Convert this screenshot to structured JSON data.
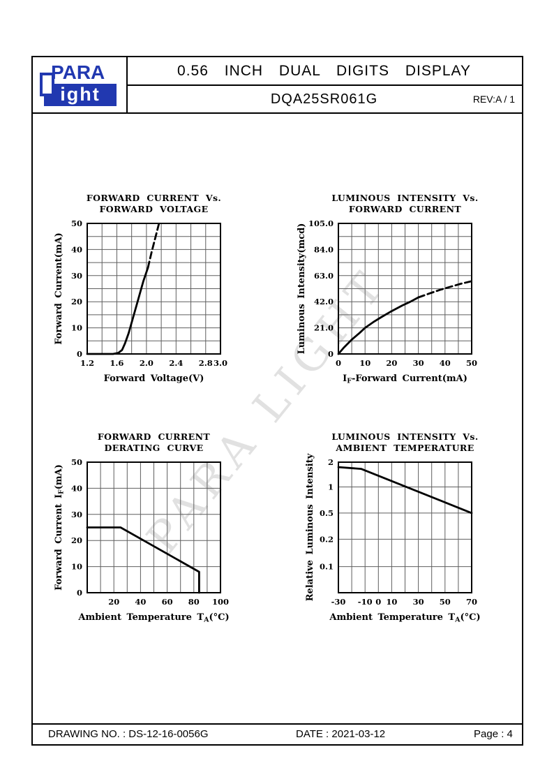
{
  "header": {
    "logo_top": "PARA",
    "logo_bottom": "ight",
    "title": "0.56 INCH DUAL DIGITS DISPLAY",
    "part_number": "DQA25SR061G",
    "rev": "REV:A / 1"
  },
  "watermark": "PARA LIGHT",
  "footer": {
    "drawing_no": "DRAWING NO. : DS-12-16-0056G",
    "date": "DATE : 2021-03-12",
    "page": "Page : 4"
  },
  "colors": {
    "brand_blue": "#2138b0",
    "grid": "#5e5e5e",
    "curve": "#000000",
    "watermark": "#c9c9c9"
  },
  "chart_data": [
    {
      "type": "line",
      "title_lines": [
        "FORWARD CURRENT Vs.",
        "FORWARD VOLTAGE"
      ],
      "xlabel": "Forward Voltage(V)",
      "ylabel": "Forward Current(mA)",
      "x_axis": {
        "min": 1.2,
        "max": 3.0,
        "grid": [
          1.2,
          1.4,
          1.6,
          1.8,
          2.0,
          2.2,
          2.4,
          2.6,
          2.8,
          3.0
        ],
        "ticks": [
          {
            "v": 1.2,
            "label": "1.2"
          },
          {
            "v": 1.6,
            "label": "1.6"
          },
          {
            "v": 2.0,
            "label": "2.0"
          },
          {
            "v": 2.4,
            "label": "2.4"
          },
          {
            "v": 2.8,
            "label": "2.8"
          },
          {
            "v": 3.0,
            "label": "3.0"
          }
        ]
      },
      "y_axis": {
        "min": 0,
        "max": 50,
        "grid": [
          0,
          5,
          10,
          15,
          20,
          25,
          30,
          35,
          40,
          45,
          50
        ],
        "ticks": [
          {
            "v": 0,
            "label": "0"
          },
          {
            "v": 10,
            "label": "10"
          },
          {
            "v": 20,
            "label": "20"
          },
          {
            "v": 30,
            "label": "30"
          },
          {
            "v": 40,
            "label": "40"
          },
          {
            "v": 50,
            "label": "50"
          }
        ]
      },
      "series": [
        {
          "style": "solid",
          "points": [
            [
              1.2,
              0
            ],
            [
              1.55,
              0
            ],
            [
              1.62,
              0.4
            ],
            [
              1.67,
              1.5
            ],
            [
              1.71,
              4
            ],
            [
              1.76,
              8
            ],
            [
              1.82,
              14
            ],
            [
              1.89,
              21
            ],
            [
              1.96,
              28
            ],
            [
              2.02,
              33
            ]
          ]
        },
        {
          "style": "dashed",
          "points": [
            [
              2.02,
              33
            ],
            [
              2.07,
              39
            ],
            [
              2.12,
              44.5
            ],
            [
              2.17,
              50
            ]
          ]
        }
      ]
    },
    {
      "type": "line",
      "title_lines": [
        "LUMINOUS INTENSITY Vs.",
        "FORWARD CURRENT"
      ],
      "xlabel": "I{F}-Forward Current(mA)",
      "ylabel": "Luminous Intensity(mcd)",
      "x_axis": {
        "min": 0,
        "max": 50,
        "grid": [
          0,
          5,
          10,
          15,
          20,
          25,
          30,
          35,
          40,
          45,
          50
        ],
        "ticks": [
          {
            "v": 0,
            "label": "0"
          },
          {
            "v": 10,
            "label": "10"
          },
          {
            "v": 20,
            "label": "20"
          },
          {
            "v": 30,
            "label": "30"
          },
          {
            "v": 40,
            "label": "40"
          },
          {
            "v": 50,
            "label": "50"
          }
        ]
      },
      "y_axis": {
        "min": 0,
        "max": 105,
        "wide": true,
        "grid": [
          0,
          10.5,
          21,
          31.5,
          42,
          52.5,
          63,
          73.5,
          84,
          94.5,
          105
        ],
        "ticks": [
          {
            "v": 0,
            "label": "0"
          },
          {
            "v": 21,
            "label": "21.0"
          },
          {
            "v": 42,
            "label": "42.0"
          },
          {
            "v": 63,
            "label": "63.0"
          },
          {
            "v": 84,
            "label": "84.0"
          },
          {
            "v": 105,
            "label": "105.0"
          }
        ]
      },
      "series": [
        {
          "style": "solid",
          "points": [
            [
              0,
              0
            ],
            [
              2,
              5
            ],
            [
              5,
              11.5
            ],
            [
              8,
              17
            ],
            [
              10,
              21
            ],
            [
              13,
              25.5
            ],
            [
              16,
              29.5
            ],
            [
              20,
              34.5
            ],
            [
              24,
              39
            ],
            [
              27,
              42
            ],
            [
              30,
              45.5
            ]
          ]
        },
        {
          "style": "dashed",
          "points": [
            [
              30,
              45.5
            ],
            [
              34,
              48.5
            ],
            [
              38,
              51.5
            ],
            [
              42,
              54
            ],
            [
              46,
              56.5
            ],
            [
              50,
              58.5
            ]
          ]
        }
      ]
    },
    {
      "type": "line",
      "title_lines": [
        "FORWARD CURRENT",
        "DERATING CURVE"
      ],
      "xlabel": "Ambient Temperature T{A}(°C)",
      "ylabel": "Forward Current I{F}(mA)",
      "x_axis": {
        "min": 0,
        "max": 100,
        "grid": [
          0,
          10,
          20,
          30,
          40,
          50,
          60,
          70,
          80,
          90,
          100
        ],
        "ticks": [
          {
            "v": 20,
            "label": "20"
          },
          {
            "v": 40,
            "label": "40"
          },
          {
            "v": 60,
            "label": "60"
          },
          {
            "v": 80,
            "label": "80"
          },
          {
            "v": 100,
            "label": "100"
          }
        ]
      },
      "y_axis": {
        "min": 0,
        "max": 50,
        "grid": [
          0,
          10,
          20,
          30,
          40,
          50
        ],
        "ticks": [
          {
            "v": 0,
            "label": "0"
          },
          {
            "v": 10,
            "label": "10"
          },
          {
            "v": 20,
            "label": "20"
          },
          {
            "v": 30,
            "label": "30"
          },
          {
            "v": 40,
            "label": "40"
          },
          {
            "v": 50,
            "label": "50"
          }
        ]
      },
      "series": [
        {
          "style": "solid",
          "points": [
            [
              0,
              25
            ],
            [
              25,
              25
            ],
            [
              84,
              8
            ],
            [
              84,
              0
            ]
          ]
        }
      ]
    },
    {
      "type": "line",
      "title_lines": [
        "LUMINOUS INTENSITY Vs.",
        "AMBIENT TEMPERATURE"
      ],
      "xlabel": "Ambient Temperature T{A}(°C)",
      "ylabel": "Relative Luminous Intensity",
      "x_axis": {
        "min": -30,
        "max": 70,
        "grid": [
          -30,
          -20,
          -10,
          0,
          10,
          20,
          30,
          40,
          50,
          60,
          70
        ],
        "ticks": [
          {
            "v": -30,
            "label": "-30"
          },
          {
            "v": -10,
            "label": "-10"
          },
          {
            "v": 0,
            "label": "0"
          },
          {
            "v": 10,
            "label": "10"
          },
          {
            "v": 30,
            "label": "30"
          },
          {
            "v": 50,
            "label": "50"
          },
          {
            "v": 70,
            "label": "70"
          }
        ]
      },
      "y_axis": {
        "scale": "log",
        "map": [
          [
            0.1,
            0.8
          ],
          [
            0.2,
            0.59
          ],
          [
            0.5,
            0.39
          ],
          [
            1,
            0.19
          ],
          [
            2,
            0
          ]
        ],
        "grid": [
          0.1,
          0.2,
          0.5,
          1,
          2
        ],
        "ticks": [
          {
            "v": 2,
            "label": "2"
          },
          {
            "v": 1,
            "label": "1"
          },
          {
            "v": 0.5,
            "label": "0.5"
          },
          {
            "v": 0.2,
            "label": "0.2"
          },
          {
            "v": 0.1,
            "label": "0.1"
          }
        ]
      },
      "series": [
        {
          "style": "solid",
          "points": [
            [
              -30,
              1.8
            ],
            [
              -13,
              1.73
            ],
            [
              70,
              0.5
            ]
          ]
        }
      ]
    }
  ]
}
